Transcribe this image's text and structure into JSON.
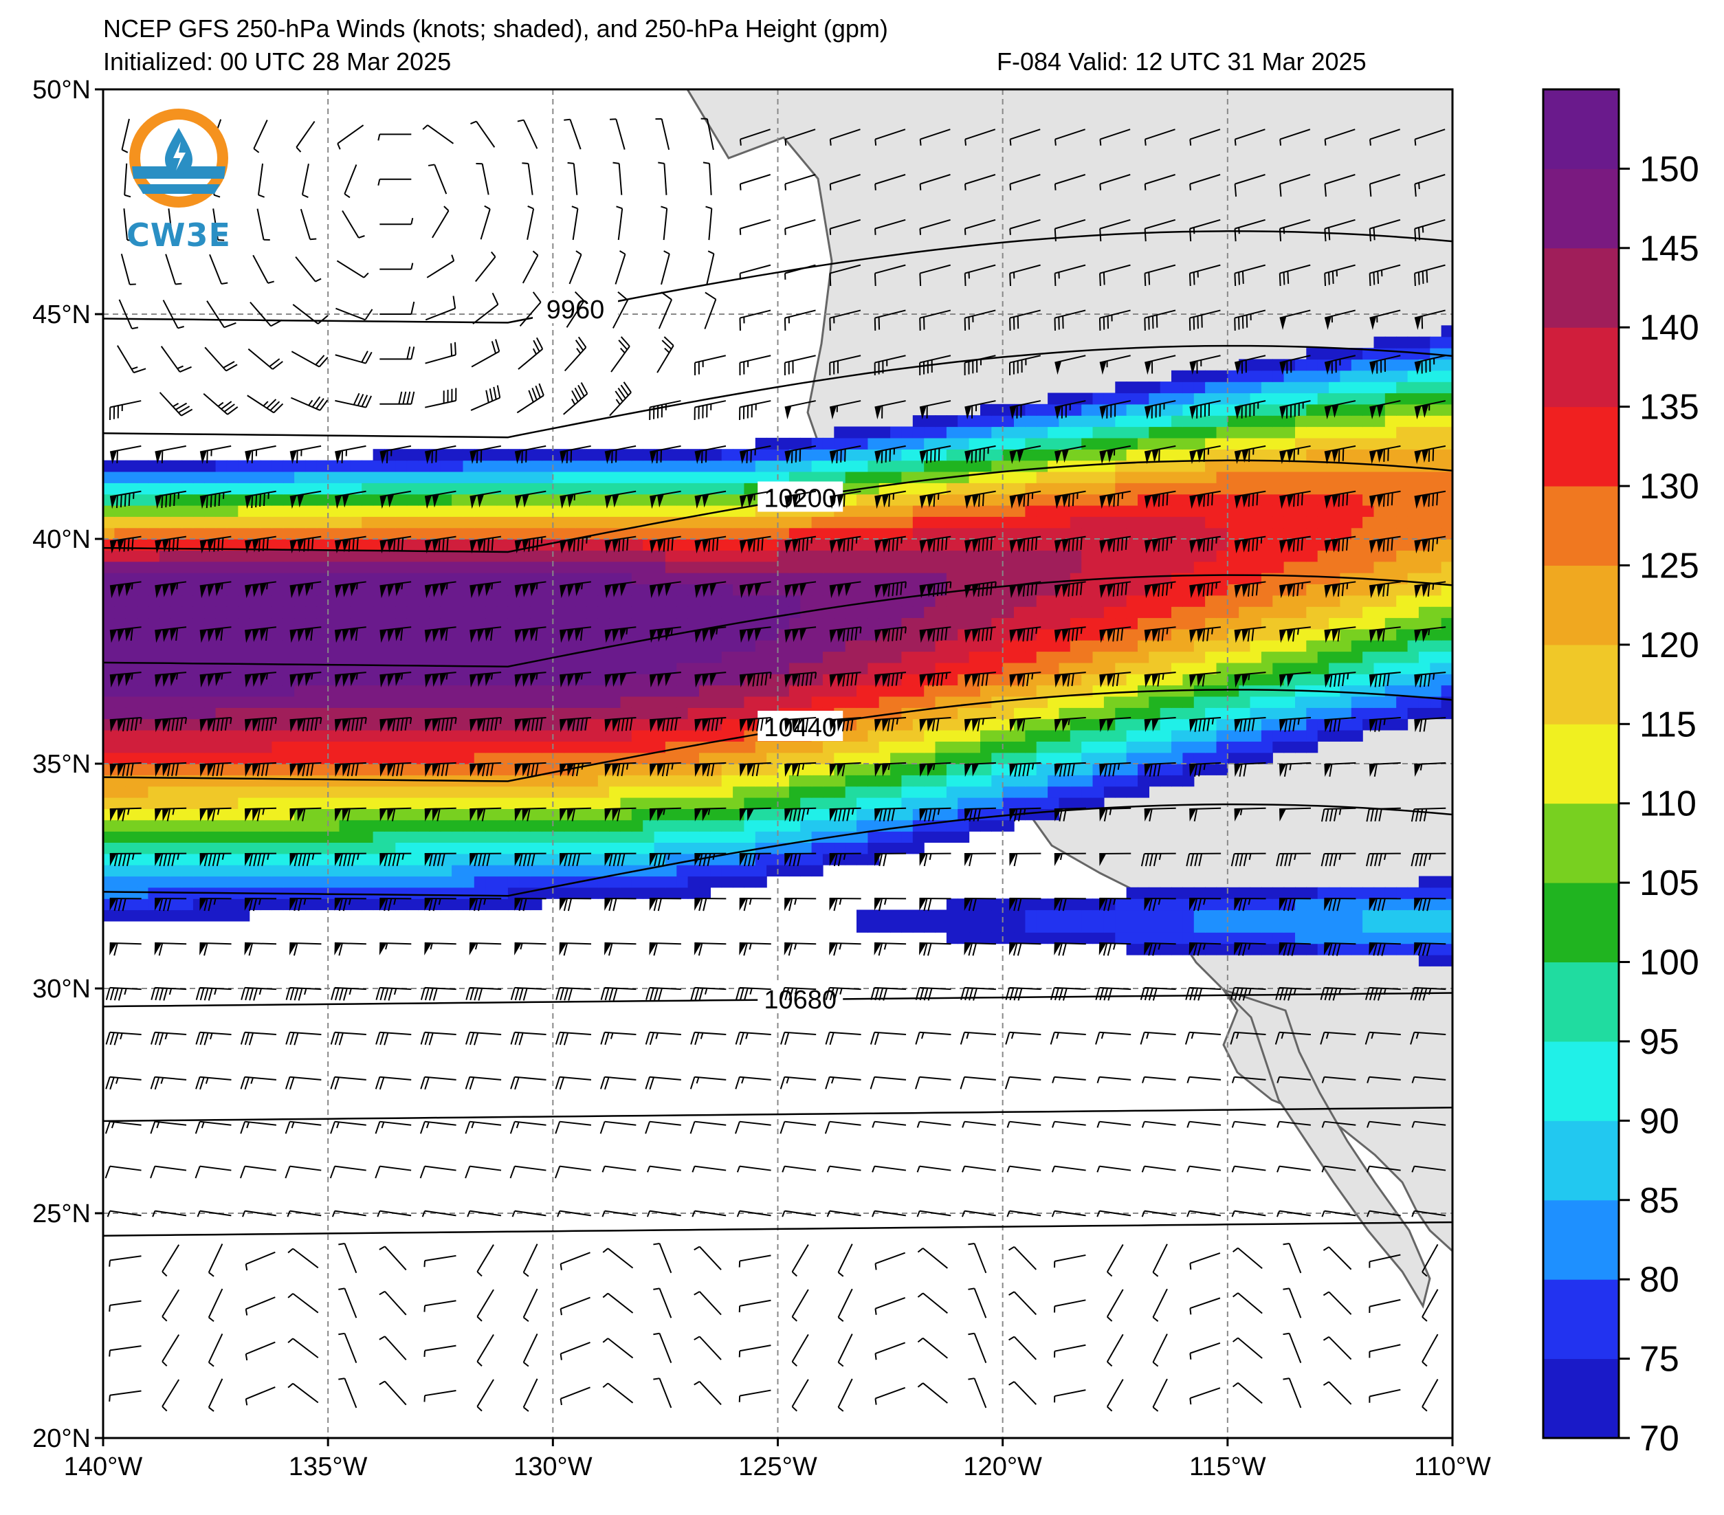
{
  "title": {
    "line1": "NCEP GFS 250-hPa Winds (knots; shaded), and 250-hPa Height (gpm)",
    "init": "Initialized: 00 UTC 28 Mar 2025",
    "valid": "F-084  Valid: 12 UTC 31 Mar 2025"
  },
  "logo": {
    "text": "CW3E",
    "icon": "cw3e-logo-icon",
    "colors": {
      "ring": "#f5921e",
      "water": "#2a8fc4"
    }
  },
  "axes": {
    "lon_ticks": [
      "140°W",
      "135°W",
      "130°W",
      "125°W",
      "120°W",
      "115°W",
      "110°W"
    ],
    "lat_ticks": [
      "50°N",
      "45°N",
      "40°N",
      "35°N",
      "30°N",
      "25°N",
      "20°N"
    ],
    "lon_range": [
      -140,
      -110
    ],
    "lat_range": [
      20,
      50
    ],
    "grid": "dashed"
  },
  "colorbar": {
    "levels": [
      70,
      75,
      80,
      85,
      90,
      95,
      100,
      105,
      110,
      115,
      120,
      125,
      130,
      135,
      140,
      145,
      150,
      155
    ],
    "labels": [
      "70",
      "75",
      "80",
      "85",
      "90",
      "95",
      "100",
      "105",
      "110",
      "115",
      "120",
      "125",
      "130",
      "135",
      "140",
      "145",
      "150"
    ],
    "colors": [
      "#1a1ac8",
      "#2233f0",
      "#1e90ff",
      "#22c8f0",
      "#20f0e8",
      "#20dca0",
      "#20b420",
      "#78d020",
      "#f0f020",
      "#f0c828",
      "#f0a820",
      "#f07820",
      "#f02020",
      "#d01e3c",
      "#a01e5a",
      "#7a1a80",
      "#6a1a8c"
    ]
  },
  "contours": [
    {
      "label": "9960",
      "value": 9960
    },
    {
      "label": "10200",
      "value": 10200
    },
    {
      "label": "10440",
      "value": 10440
    },
    {
      "label": "10680",
      "value": 10680
    }
  ],
  "jet_core": {
    "max_knots": 155,
    "lat": 38.5,
    "lon_from": -140,
    "lon_to": -124
  }
}
